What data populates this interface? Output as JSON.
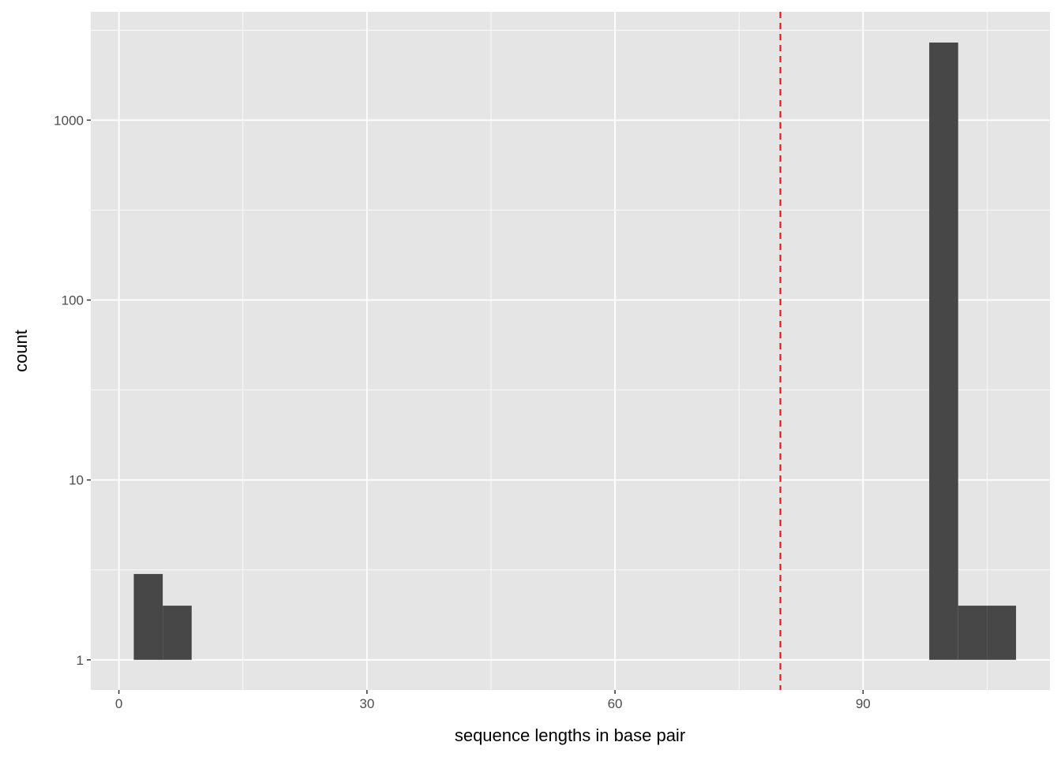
{
  "chart_data": {
    "type": "bar",
    "subtype": "histogram",
    "title": "",
    "xlabel": "sequence lengths in base pair",
    "ylabel": "count",
    "x_scale": "linear",
    "y_scale": "log10",
    "xlim": [
      -3.4,
      112.6
    ],
    "ylim": [
      0.68,
      4000
    ],
    "x_ticks": [
      0,
      30,
      60,
      90
    ],
    "x_tick_labels": [
      "0",
      "30",
      "60",
      "90"
    ],
    "x_minor": [
      15,
      45,
      75,
      105
    ],
    "y_ticks": [
      1,
      10,
      100,
      1000
    ],
    "y_tick_labels": [
      "1",
      "10",
      "100",
      "1000"
    ],
    "y_minor": [
      3.16,
      31.6,
      316,
      3162
    ],
    "grid": true,
    "bins": [
      {
        "x0": 1.8,
        "x1": 5.3,
        "count": 3
      },
      {
        "x0": 5.3,
        "x1": 8.8,
        "count": 2
      },
      {
        "x0": 98.0,
        "x1": 101.5,
        "count": 2700
      },
      {
        "x0": 101.5,
        "x1": 105.0,
        "count": 2
      },
      {
        "x0": 105.0,
        "x1": 108.5,
        "count": 2
      }
    ],
    "vline": {
      "x": 80,
      "style": "dashed"
    },
    "colors": {
      "panel": "#e5e5e5",
      "bar": "#474747",
      "grid": "#ffffff",
      "vline": "#e41a1c"
    }
  }
}
